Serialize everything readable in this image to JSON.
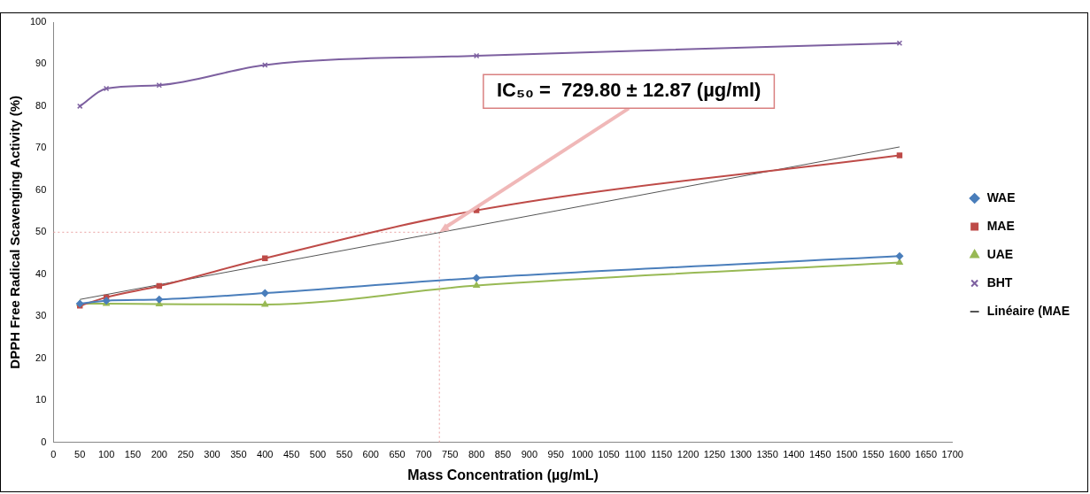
{
  "chart_data": {
    "type": "line",
    "xlabel": "Mass Concentration (µg/mL)",
    "ylabel": "DPPH Free Radical Scavenging Activity (%)",
    "xlim": [
      0,
      1700
    ],
    "xticks": [
      0,
      50,
      100,
      150,
      200,
      250,
      300,
      350,
      400,
      450,
      500,
      550,
      600,
      650,
      700,
      750,
      800,
      850,
      900,
      950,
      1000,
      1050,
      1100,
      1150,
      1200,
      1250,
      1300,
      1350,
      1400,
      1450,
      1500,
      1550,
      1600,
      1650,
      1700
    ],
    "ylim": [
      0,
      100
    ],
    "yticks": [
      0,
      10,
      20,
      30,
      40,
      50,
      60,
      70,
      80,
      90,
      100
    ],
    "x": [
      50,
      100,
      200,
      400,
      800,
      1600
    ],
    "series": [
      {
        "name": "WAE",
        "color": "#4a7ebb",
        "marker": "diamond",
        "values": [
          33,
          33.7,
          34,
          35.5,
          39.1,
          44.3
        ]
      },
      {
        "name": "MAE",
        "color": "#be4b48",
        "marker": "square",
        "values": [
          32.5,
          34.5,
          37.2,
          43.8,
          55.2,
          68.3
        ]
      },
      {
        "name": "UAE",
        "color": "#98b954",
        "marker": "triangle",
        "values": [
          33,
          33,
          32.9,
          32.8,
          37.3,
          42.8
        ]
      },
      {
        "name": "BHT",
        "color": "#7d60a0",
        "marker": "cross",
        "values": [
          80,
          84.2,
          85,
          89.8,
          92,
          95
        ]
      },
      {
        "name": "Linéaire (MAE",
        "color": "#555555",
        "marker": "none",
        "x": [
          50,
          1600
        ],
        "values": [
          34,
          70.3
        ]
      }
    ],
    "ref_lines": [
      {
        "axis": "y",
        "value": 50,
        "color": "#e8a0a0",
        "line_style": "dotted"
      },
      {
        "axis": "x",
        "value": 729.8,
        "color": "#e8a0a0",
        "line_style": "dotted"
      }
    ],
    "annotations": [
      {
        "text": "IC₅₀ =  729.80 ± 12.87 (µg/ml)",
        "x": 729.8,
        "y": 50
      }
    ],
    "grid": false,
    "legend": "right"
  }
}
